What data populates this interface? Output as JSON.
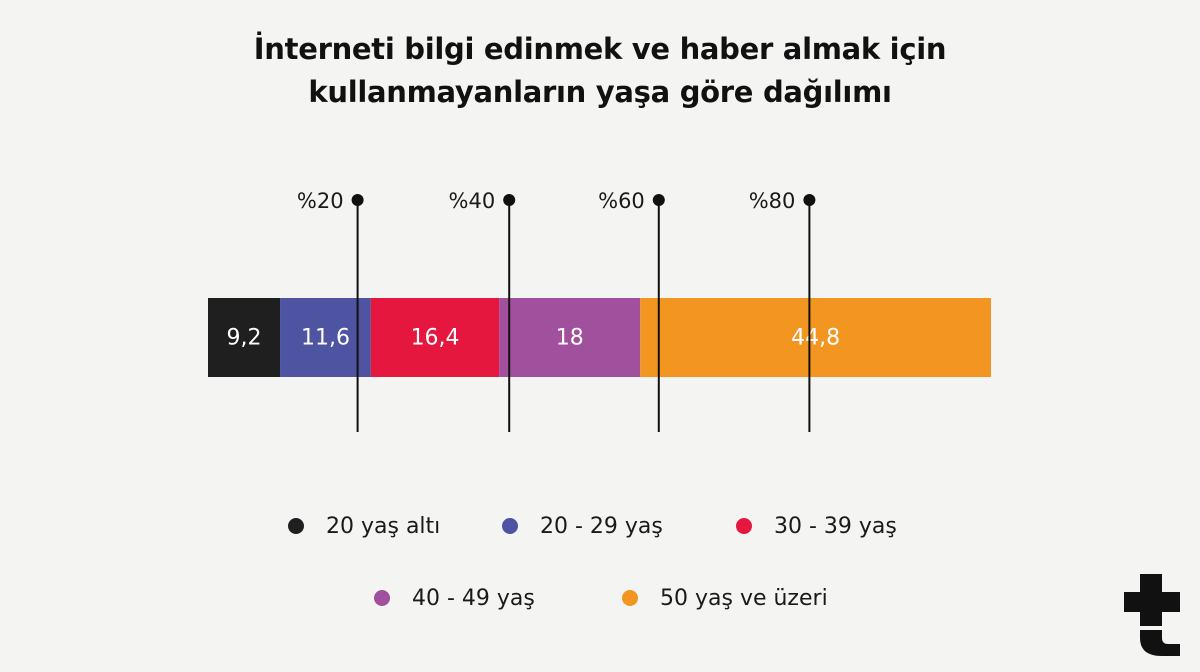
{
  "title_line1": "İnterneti bilgi edinmek ve haber almak için",
  "title_line2": "kullanmayanların yaşa göre dağılımı",
  "chart_data": {
    "type": "bar",
    "orientation": "horizontal-stacked",
    "title": "İnterneti bilgi edinmek ve haber almak için kullanmayanların yaşa göre dağılımı",
    "xlim": [
      0,
      100
    ],
    "reference_lines": [
      {
        "value": 20,
        "label": "%20"
      },
      {
        "value": 40,
        "label": "%40"
      },
      {
        "value": 60,
        "label": "%60"
      },
      {
        "value": 80,
        "label": "%80"
      }
    ],
    "segments": [
      {
        "name": "20 yaş altı",
        "value": 9.2,
        "label": "9,2",
        "color": "#1f1f1f"
      },
      {
        "name": "20 - 29 yaş",
        "value": 11.6,
        "label": "11,6",
        "color": "#4e54a1"
      },
      {
        "name": "30 - 39 yaş",
        "value": 16.4,
        "label": "16,4",
        "color": "#e6173f"
      },
      {
        "name": "40 - 49 yaş",
        "value": 18,
        "label": "18",
        "color": "#a1509e"
      },
      {
        "name": "50 yaş ve üzeri",
        "value": 44.8,
        "label": "44,8",
        "color": "#f29621"
      }
    ],
    "legend_position": "bottom"
  },
  "legend": {
    "row1": [
      {
        "label": "20 yaş altı",
        "color": "#1f1f1f"
      },
      {
        "label": "20 - 29 yaş",
        "color": "#4e54a1"
      },
      {
        "label": "30 - 39 yaş",
        "color": "#e6173f"
      }
    ],
    "row2": [
      {
        "label": "40 - 49 yaş",
        "color": "#a1509e"
      },
      {
        "label": "50 yaş ve üzeri",
        "color": "#f29621"
      }
    ]
  },
  "brand": {
    "logo_icon": "teyit-t-icon",
    "color": "#111111"
  }
}
